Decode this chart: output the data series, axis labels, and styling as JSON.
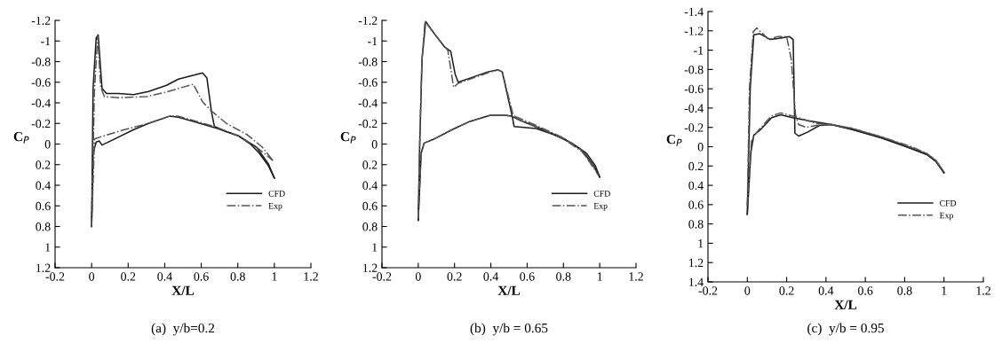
{
  "chart_data": [
    {
      "type": "line",
      "title": "(a)  y/b=0.2",
      "xlabel": "X/L",
      "ylabel": "C$_{P}$",
      "xlim": [
        -0.2,
        1.2
      ],
      "xticks": [
        -0.2,
        0,
        0.2,
        0.4,
        0.6,
        0.8,
        1,
        1.2
      ],
      "ylim": [
        1.2,
        -1.2
      ],
      "yticks": [
        -1.2,
        -1,
        -0.8,
        -0.6,
        -0.4,
        -0.2,
        0,
        0.2,
        0.4,
        0.6,
        0.8,
        1,
        1.2
      ],
      "grid": false,
      "legend": "bottom right",
      "marker": "none",
      "series": [
        {
          "name": "CFD",
          "color": "#1a1a1a",
          "line_style": "solid",
          "x": [
            0,
            0.008,
            0.025,
            0.036,
            0.057,
            0.082,
            0.148,
            0.23,
            0.311,
            0.41,
            0.475,
            0.541,
            0.607,
            0.631,
            0.656,
            0.672,
            0.738,
            0.803,
            0.869,
            0.918,
            0.967,
            1.0
          ],
          "values": [
            0.8,
            -0.54,
            -1.03,
            -1.06,
            -0.54,
            -0.49,
            -0.49,
            -0.48,
            -0.51,
            -0.57,
            -0.63,
            -0.66,
            -0.69,
            -0.64,
            -0.31,
            -0.17,
            -0.12,
            -0.08,
            0.0,
            0.09,
            0.21,
            0.33
          ]
        },
        {
          "color": "#1a1a1a",
          "line_style": "solid",
          "x": [
            0,
            0.008,
            0.025,
            0.041,
            0.057,
            0.115,
            0.23,
            0.311,
            0.426,
            0.475,
            0.574,
            0.672,
            0.803,
            0.902,
            0.967,
            1.0
          ],
          "values": [
            0.8,
            0.09,
            -0.02,
            -0.03,
            0.01,
            -0.04,
            -0.14,
            -0.2,
            -0.27,
            -0.26,
            -0.21,
            -0.16,
            -0.08,
            0.03,
            0.19,
            0.33
          ]
        },
        {
          "name": "Exp",
          "color": "#555555",
          "line_style": "dashdot",
          "x": [
            0,
            0.015,
            0.033,
            0.05,
            0.07,
            0.15,
            0.3,
            0.4,
            0.475,
            0.557,
            0.607,
            0.656,
            0.738,
            0.852,
            0.934,
            0.992
          ],
          "values": [
            0.8,
            -0.5,
            -1.05,
            -0.55,
            -0.46,
            -0.45,
            -0.46,
            -0.5,
            -0.54,
            -0.58,
            -0.41,
            -0.32,
            -0.2,
            -0.09,
            0.03,
            0.16
          ]
        },
        {
          "color": "#555555",
          "line_style": "dashdot",
          "x": [
            0,
            0.016,
            0.05,
            0.18,
            0.311,
            0.426,
            0.475,
            0.574,
            0.672,
            0.803,
            0.902,
            0.992
          ],
          "values": [
            0.8,
            -0.05,
            -0.07,
            -0.14,
            -0.2,
            -0.27,
            -0.27,
            -0.22,
            -0.17,
            -0.08,
            0.03,
            0.16
          ]
        }
      ]
    },
    {
      "type": "line",
      "title": "(b)  y/b = 0.65",
      "xlabel": "X/L",
      "ylabel": "C$_{P}$",
      "xlim": [
        -0.2,
        1.2
      ],
      "xticks": [
        -0.2,
        0,
        0.2,
        0.4,
        0.6,
        0.8,
        1,
        1.2
      ],
      "ylim": [
        1.2,
        -1.2
      ],
      "yticks": [
        -1.2,
        -1,
        -0.8,
        -0.6,
        -0.4,
        -0.2,
        0,
        0.2,
        0.4,
        0.6,
        0.8,
        1,
        1.2
      ],
      "grid": false,
      "legend": "bottom right",
      "marker": "none",
      "series": [
        {
          "name": "CFD",
          "color": "#1a1a1a",
          "line_style": "solid",
          "x": [
            0,
            0.008,
            0.021,
            0.041,
            0.089,
            0.146,
            0.179,
            0.203,
            0.22,
            0.285,
            0.382,
            0.439,
            0.463,
            0.52,
            0.528,
            0.65,
            0.748,
            0.846,
            0.927,
            0.976,
            1.0
          ],
          "values": [
            0.74,
            0,
            -0.83,
            -1.19,
            -1.07,
            -0.94,
            -0.9,
            -0.68,
            -0.6,
            -0.64,
            -0.7,
            -0.72,
            -0.7,
            -0.25,
            -0.17,
            -0.15,
            -0.09,
            -0.01,
            0.09,
            0.21,
            0.32
          ]
        },
        {
          "color": "#1a1a1a",
          "line_style": "solid",
          "x": [
            0,
            0.016,
            0.033,
            0.089,
            0.187,
            0.285,
            0.398,
            0.48,
            0.512,
            0.577,
            0.675,
            0.805,
            0.902,
            0.967,
            1.0
          ],
          "values": [
            0.74,
            0.09,
            -0.01,
            -0.05,
            -0.14,
            -0.22,
            -0.28,
            -0.28,
            -0.27,
            -0.22,
            -0.15,
            -0.05,
            0.06,
            0.21,
            0.32
          ]
        },
        {
          "name": "Exp",
          "color": "#555555",
          "line_style": "dashdot",
          "x": [
            0,
            0.008,
            0.02,
            0.037,
            0.12,
            0.163,
            0.195,
            0.22,
            0.285,
            0.382,
            0.439,
            0.463,
            0.52,
            0.545,
            0.6,
            0.7,
            0.8,
            0.9,
            0.96,
            0.992
          ],
          "values": [
            0.72,
            0,
            -0.8,
            -1.19,
            -1.0,
            -0.91,
            -0.55,
            -0.59,
            -0.63,
            -0.69,
            -0.72,
            -0.7,
            -0.3,
            -0.24,
            -0.2,
            -0.13,
            -0.05,
            0.07,
            0.2,
            0.3
          ]
        },
        {
          "color": "#555555",
          "line_style": "dashdot",
          "x": [
            0,
            0.016,
            0.033,
            0.089,
            0.187,
            0.285,
            0.398,
            0.48,
            0.545,
            0.65,
            0.8,
            0.9,
            0.992
          ],
          "values": [
            0.72,
            0.08,
            -0.01,
            -0.05,
            -0.14,
            -0.22,
            -0.28,
            -0.28,
            -0.26,
            -0.18,
            -0.06,
            0.06,
            0.3
          ]
        }
      ]
    },
    {
      "type": "line",
      "title": "(c)  y/b = 0.95",
      "xlabel": "X/L",
      "ylabel": "C$_{P}$",
      "xlim": [
        -0.2,
        1.2
      ],
      "xticks": [
        -0.2,
        0,
        0.2,
        0.4,
        0.6,
        0.8,
        1,
        1.2
      ],
      "ylim": [
        1.4,
        -1.4
      ],
      "yticks": [
        -1.4,
        -1.2,
        -1,
        -0.8,
        -0.6,
        -0.4,
        -0.2,
        0,
        0.2,
        0.4,
        0.6,
        0.8,
        1,
        1.2,
        1.4
      ],
      "grid": false,
      "legend": "bottom right",
      "marker": "none",
      "series": [
        {
          "name": "CFD",
          "color": "#1a1a1a",
          "line_style": "solid",
          "x": [
            0,
            0.015,
            0.033,
            0.064,
            0.117,
            0.155,
            0.215,
            0.233,
            0.238,
            0.242,
            0.261,
            0.306,
            0.367,
            0.427,
            0.533,
            0.685,
            0.836,
            0.912,
            0.958,
            1.0
          ],
          "values": [
            0.7,
            -0.61,
            -1.16,
            -1.17,
            -1.11,
            -1.12,
            -1.14,
            -1.11,
            -0.61,
            -0.14,
            -0.11,
            -0.15,
            -0.22,
            -0.23,
            -0.18,
            -0.09,
            0.02,
            0.08,
            0.15,
            0.27
          ]
        },
        {
          "color": "#1a1a1a",
          "line_style": "solid",
          "x": [
            0,
            0.018,
            0.033,
            0.064,
            0.124,
            0.17,
            0.23,
            0.306,
            0.427,
            0.533,
            0.685,
            0.836,
            0.912,
            0.958,
            1.0
          ],
          "values": [
            0.7,
            0.06,
            -0.12,
            -0.17,
            -0.3,
            -0.33,
            -0.3,
            -0.27,
            -0.23,
            -0.18,
            -0.09,
            0.02,
            0.08,
            0.15,
            0.27
          ]
        },
        {
          "name": "Exp",
          "color": "#555555",
          "line_style": "dashdot",
          "x": [
            0,
            0.011,
            0.03,
            0.048,
            0.109,
            0.155,
            0.2,
            0.223,
            0.245,
            0.261,
            0.3,
            0.35,
            0.427,
            0.533,
            0.685,
            0.836,
            0.912,
            0.958,
            1.0
          ],
          "values": [
            0.61,
            -0.61,
            -1.19,
            -1.23,
            -1.11,
            -1.14,
            -1.14,
            -0.91,
            -0.33,
            -0.23,
            -0.2,
            -0.22,
            -0.23,
            -0.19,
            -0.1,
            0.01,
            0.07,
            0.14,
            0.26
          ]
        },
        {
          "color": "#555555",
          "line_style": "dashdot",
          "x": [
            0,
            0.021,
            0.048,
            0.124,
            0.17,
            0.245,
            0.35,
            0.427,
            0.533,
            0.685,
            0.836,
            0.912,
            0.958,
            1.0
          ],
          "values": [
            0.61,
            -0.06,
            -0.15,
            -0.32,
            -0.35,
            -0.31,
            -0.24,
            -0.23,
            -0.19,
            -0.1,
            0.0,
            0.07,
            0.14,
            0.26
          ]
        }
      ]
    }
  ]
}
